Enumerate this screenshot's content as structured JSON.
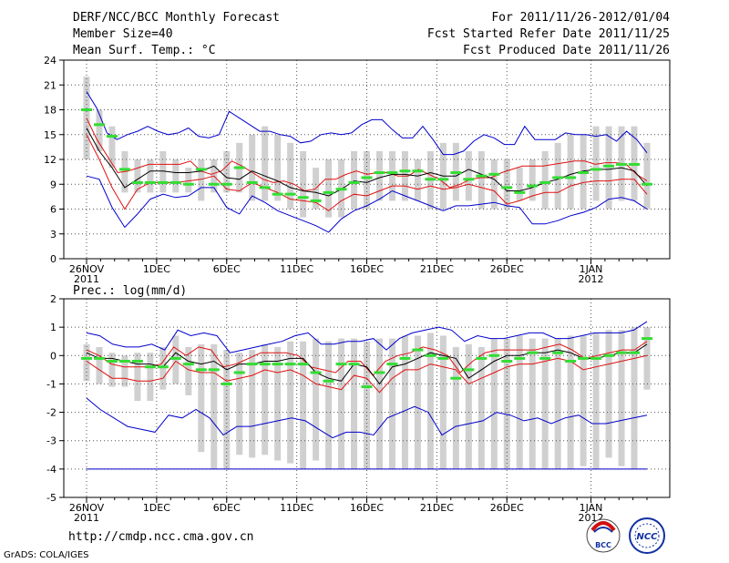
{
  "header": {
    "left": [
      "DERF/NCC/BCC Monthly Forecast",
      "Member Size=40",
      "Mean Surf. Temp.: °C"
    ],
    "right": [
      "For 2011/11/26-2012/01/04",
      "Fcst Started Refer Date 2011/11/25",
      "Fcst Produced Date 2011/11/26"
    ]
  },
  "footer": {
    "url": "http://cmdp.ncc.cma.gov.cn",
    "grads": "GrADS: COLA/IGES",
    "logo_bcc": "BCC",
    "logo_ncc": "NCC"
  },
  "colors": {
    "box": "#d0d0d0",
    "mean": "#000000",
    "sd": "#e01010",
    "range": "#0000cc",
    "median": "#33dd33"
  },
  "chart_data": [
    {
      "type": "line",
      "title": "Mean Surf. Temp.: °C",
      "ylim": [
        0,
        24
      ],
      "yticks": [
        0,
        3,
        6,
        9,
        12,
        15,
        18,
        21,
        24
      ],
      "days": 40,
      "xticks": [
        {
          "day": 0,
          "label": "26NOV",
          "sub": "2011"
        },
        {
          "day": 5,
          "label": "1DEC",
          "sub": ""
        },
        {
          "day": 10,
          "label": "6DEC",
          "sub": ""
        },
        {
          "day": 15,
          "label": "11DEC",
          "sub": ""
        },
        {
          "day": 20,
          "label": "16DEC",
          "sub": ""
        },
        {
          "day": 25,
          "label": "21DEC",
          "sub": ""
        },
        {
          "day": 30,
          "label": "26DEC",
          "sub": ""
        },
        {
          "day": 36,
          "label": "1JAN",
          "sub": "2012"
        }
      ],
      "series": [
        {
          "name": "max",
          "values": [
            20.2,
            18.2,
            15.2,
            14.4,
            15.0,
            15.4,
            16.0,
            15.4,
            15.0,
            15.2,
            15.8,
            14.8,
            14.6,
            15.0,
            17.8,
            17.0,
            16.2,
            15.4,
            15.4,
            15.0,
            14.8,
            14.0,
            14.2,
            15.0,
            15.2,
            15.0,
            15.2,
            16.2,
            16.8,
            16.8,
            15.6,
            14.6,
            14.6,
            16.0,
            14.4,
            12.6,
            12.6,
            13.0,
            14.2,
            15.0,
            14.6,
            13.8,
            13.8,
            16.0,
            14.4,
            14.4,
            14.4,
            15.2,
            15.0,
            15.0,
            14.8,
            15.0,
            14.2,
            15.4,
            14.4,
            12.8
          ]
        },
        {
          "name": "mean+sd",
          "values": [
            17.0,
            14.4,
            12.4,
            10.4,
            10.6,
            11.0,
            11.4,
            11.4,
            11.4,
            11.4,
            11.8,
            10.6,
            10.2,
            10.6,
            11.8,
            11.2,
            10.4,
            9.6,
            9.2,
            9.4,
            9.0,
            8.2,
            8.4,
            9.6,
            9.6,
            10.2,
            10.6,
            10.2,
            10.4,
            10.4,
            10.0,
            10.0,
            10.8,
            10.2,
            9.6,
            8.6,
            9.0,
            9.6,
            9.8,
            9.8,
            10.4,
            10.8,
            11.2,
            11.2,
            11.2,
            11.4,
            11.6,
            11.8,
            11.8,
            11.4,
            11.6,
            11.6,
            11.4,
            10.2,
            9.4
          ]
        },
        {
          "name": "mean",
          "values": [
            15.8,
            13.0,
            11.0,
            8.6,
            9.6,
            10.6,
            10.6,
            10.4,
            10.4,
            10.6,
            11.2,
            9.8,
            9.6,
            10.6,
            10.0,
            9.4,
            8.6,
            8.2,
            8.0,
            7.6,
            8.4,
            9.4,
            9.2,
            9.8,
            10.2,
            10.2,
            10.0,
            10.4,
            10.0,
            10.0,
            10.8,
            10.2,
            9.6,
            8.2,
            8.2,
            8.6,
            9.2,
            9.6,
            10.2,
            10.6,
            10.8,
            10.8,
            11.0,
            10.6,
            8.8
          ]
        },
        {
          "name": "mean-sd",
          "values": [
            15.0,
            12.0,
            8.6,
            6.0,
            8.4,
            9.2,
            9.2,
            9.2,
            9.4,
            9.6,
            10.0,
            8.4,
            8.2,
            9.2,
            8.6,
            8.0,
            7.2,
            7.0,
            6.8,
            5.8,
            7.0,
            7.8,
            7.6,
            8.2,
            8.8,
            8.8,
            8.4,
            8.8,
            8.4,
            8.6,
            9.0,
            8.6,
            8.2,
            6.6,
            7.0,
            7.6,
            8.0,
            8.0,
            8.8,
            9.2,
            9.4,
            9.4,
            9.6,
            9.6,
            7.8
          ]
        },
        {
          "name": "min",
          "values": [
            10.0,
            9.6,
            6.2,
            3.8,
            5.4,
            7.2,
            7.8,
            7.4,
            7.6,
            8.6,
            8.6,
            6.2,
            5.4,
            7.6,
            6.8,
            5.8,
            5.2,
            4.6,
            4.0,
            3.2,
            4.8,
            5.8,
            6.4,
            7.2,
            8.2,
            7.6,
            7.0,
            6.4,
            5.8,
            6.4,
            6.4,
            6.6,
            6.8,
            6.4,
            6.2,
            4.2,
            4.2,
            4.6,
            5.2,
            5.6,
            6.2,
            7.2,
            7.4,
            7.0,
            6.0
          ]
        },
        {
          "name": "median",
          "values": [
            18.0,
            16.2,
            14.8,
            10.8,
            9.2,
            9.2,
            9.2,
            9.2,
            9.0,
            10.8,
            9.0,
            9.0,
            11.0,
            9.2,
            8.6,
            7.8,
            7.8,
            7.4,
            7.0,
            8.0,
            8.4,
            9.2,
            9.8,
            10.4,
            10.4,
            10.6,
            10.6,
            9.6,
            9.6,
            10.4,
            9.6,
            10.0,
            10.2,
            8.6,
            8.0,
            8.8,
            9.2,
            9.8,
            9.8,
            10.4,
            10.8,
            11.2,
            11.4,
            11.4,
            9.0
          ]
        },
        {
          "name": "box_low",
          "values": [
            12,
            13,
            11,
            8,
            8,
            8,
            8,
            8,
            8,
            7,
            8,
            8,
            8,
            7,
            7,
            7,
            6,
            5,
            6,
            5,
            5,
            6,
            6,
            7,
            7,
            7,
            7,
            6,
            6,
            7,
            7,
            6,
            6,
            6,
            7,
            7,
            6,
            6,
            6,
            6,
            7,
            6,
            7,
            7,
            6
          ]
        },
        {
          "name": "box_high",
          "values": [
            22,
            18,
            16,
            13,
            12,
            12,
            13,
            12,
            11,
            12,
            12,
            13,
            14,
            15,
            16,
            15,
            14,
            13,
            11,
            12,
            12,
            13,
            13,
            13,
            13,
            13,
            12,
            13,
            14,
            14,
            13,
            13,
            12,
            12,
            11,
            12,
            13,
            14,
            15,
            15,
            16,
            16,
            16,
            16,
            14
          ]
        }
      ]
    },
    {
      "type": "line",
      "title": "Prec.: log(mm/d)",
      "ylim": [
        -5,
        2
      ],
      "yticks": [
        -5,
        -4,
        -3,
        -2,
        -1,
        0,
        1,
        2
      ],
      "days": 40,
      "xticks": [
        {
          "day": 0,
          "label": "26NOV",
          "sub": "2011"
        },
        {
          "day": 5,
          "label": "1DEC",
          "sub": ""
        },
        {
          "day": 10,
          "label": "6DEC",
          "sub": ""
        },
        {
          "day": 15,
          "label": "11DEC",
          "sub": ""
        },
        {
          "day": 20,
          "label": "16DEC",
          "sub": ""
        },
        {
          "day": 25,
          "label": "21DEC",
          "sub": ""
        },
        {
          "day": 30,
          "label": "26DEC",
          "sub": ""
        },
        {
          "day": 36,
          "label": "1JAN",
          "sub": "2012"
        }
      ],
      "series": [
        {
          "name": "max",
          "values": [
            0.8,
            0.7,
            0.4,
            0.3,
            0.3,
            0.4,
            0.2,
            0.9,
            0.7,
            0.8,
            0.7,
            0.1,
            0.2,
            0.3,
            0.4,
            0.5,
            0.7,
            0.8,
            0.4,
            0.4,
            0.5,
            0.5,
            0.6,
            0.2,
            0.6,
            0.8,
            0.9,
            1.0,
            0.9,
            0.5,
            0.7,
            0.6,
            0.6,
            0.7,
            0.8,
            0.8,
            0.6,
            0.6,
            0.7,
            0.8,
            0.8,
            0.8,
            0.9,
            1.2
          ]
        },
        {
          "name": "mean+sd",
          "values": [
            0.2,
            0.0,
            -0.3,
            -0.4,
            -0.4,
            -0.4,
            -0.3,
            0.3,
            0.0,
            0.3,
            0.2,
            -0.4,
            -0.3,
            -0.1,
            0.1,
            0.1,
            0.1,
            0.0,
            -0.4,
            -0.5,
            -0.6,
            -0.2,
            -0.2,
            -0.7,
            -0.2,
            0.0,
            0.1,
            0.3,
            0.2,
            0.0,
            -0.6,
            -0.2,
            0.1,
            0.2,
            0.2,
            0.2,
            0.2,
            0.3,
            0.4,
            0.2,
            -0.1,
            0.0,
            0.1,
            0.2,
            0.2,
            0.5
          ]
        },
        {
          "name": "mean",
          "values": [
            0.1,
            -0.1,
            -0.1,
            -0.2,
            -0.3,
            -0.3,
            -0.4,
            0.1,
            -0.2,
            -0.3,
            -0.2,
            -0.5,
            -0.3,
            -0.3,
            -0.2,
            -0.2,
            -0.1,
            -0.1,
            -0.6,
            -0.8,
            -0.9,
            -0.3,
            -0.4,
            -1.0,
            -0.4,
            -0.3,
            -0.1,
            0.1,
            0.0,
            -0.1,
            -0.8,
            -0.5,
            -0.2,
            0.0,
            0.0,
            0.1,
            0.1,
            0.2,
            0.1,
            -0.1,
            -0.1,
            0.0,
            0.1,
            0.1,
            0.4
          ]
        },
        {
          "name": "mean-sd",
          "values": [
            -0.2,
            -0.5,
            -0.8,
            -0.8,
            -0.9,
            -0.9,
            -0.8,
            -0.2,
            -0.5,
            -0.6,
            -0.6,
            -0.9,
            -0.8,
            -0.7,
            -0.5,
            -0.6,
            -0.5,
            -0.7,
            -1.0,
            -1.1,
            -1.2,
            -0.7,
            -0.8,
            -1.3,
            -0.8,
            -0.5,
            -0.5,
            -0.3,
            -0.4,
            -0.5,
            -1.0,
            -0.8,
            -0.6,
            -0.4,
            -0.3,
            -0.3,
            -0.2,
            -0.1,
            -0.2,
            -0.5,
            -0.4,
            -0.3,
            -0.2,
            -0.1,
            0.0
          ]
        },
        {
          "name": "min",
          "values": [
            -1.5,
            -1.9,
            -2.2,
            -2.5,
            -2.6,
            -2.7,
            -2.1,
            -2.2,
            -1.9,
            -2.2,
            -2.8,
            -2.5,
            -2.5,
            -2.4,
            -2.3,
            -2.2,
            -2.3,
            -2.6,
            -2.9,
            -2.7,
            -2.7,
            -2.8,
            -2.2,
            -2.0,
            -1.8,
            -2.0,
            -2.8,
            -2.5,
            -2.4,
            -2.3,
            -2.0,
            -2.1,
            -2.3,
            -2.2,
            -2.4,
            -2.2,
            -2.1,
            -2.4,
            -2.4,
            -2.3,
            -2.2,
            -2.1
          ]
        },
        {
          "name": "floor",
          "values": [
            -4.0
          ]
        },
        {
          "name": "median",
          "values": [
            -0.1,
            -0.1,
            -0.2,
            -0.2,
            -0.2,
            -0.4,
            -0.4,
            -0.1,
            -0.3,
            -0.5,
            -0.5,
            -1.0,
            -0.6,
            -0.3,
            -0.3,
            -0.3,
            -0.3,
            -0.3,
            -0.6,
            -0.9,
            -0.3,
            -0.3,
            -1.1,
            -0.6,
            -0.3,
            -0.1,
            0.2,
            0.0,
            -0.1,
            -0.8,
            -0.5,
            -0.1,
            0.0,
            -0.2,
            -0.1,
            0.1,
            -0.1,
            0.1,
            -0.2,
            -0.1,
            -0.1,
            0.0,
            0.1,
            0.1,
            0.6
          ]
        },
        {
          "name": "box_low",
          "values": [
            -0.9,
            -1.0,
            -1.1,
            -1.1,
            -1.6,
            -1.6,
            -1.2,
            -1.0,
            -1.4,
            -3.4,
            -4.0,
            -4.0,
            -3.5,
            -3.6,
            -3.5,
            -3.7,
            -3.8,
            -4.0,
            -3.7,
            -4.0,
            -4.0,
            -4.0,
            -4.0,
            -4.0,
            -4.0,
            -4.0,
            -4.0,
            -4.0,
            -4.0,
            -4.0,
            -4.0,
            -4.0,
            -4.0,
            -4.0,
            -4.0,
            -4.0,
            -4.0,
            -4.0,
            -4.0,
            -3.9,
            -4.0,
            -3.6,
            -3.9,
            -4.0,
            -1.2
          ]
        },
        {
          "name": "box_high",
          "values": [
            0.4,
            0.3,
            0.1,
            0.0,
            0.1,
            0.1,
            0.3,
            0.7,
            0.3,
            0.4,
            0.4,
            0.2,
            0.1,
            0.2,
            0.4,
            0.3,
            0.5,
            0.5,
            0.6,
            0.5,
            0.6,
            0.6,
            0.5,
            0.6,
            0.6,
            0.7,
            0.7,
            0.8,
            0.7,
            0.3,
            0.4,
            0.3,
            0.6,
            0.6,
            0.7,
            0.6,
            0.6,
            0.6,
            0.7,
            0.7,
            0.8,
            0.9,
            0.9,
            1.0,
            1.0,
            1.0
          ]
        }
      ]
    }
  ]
}
